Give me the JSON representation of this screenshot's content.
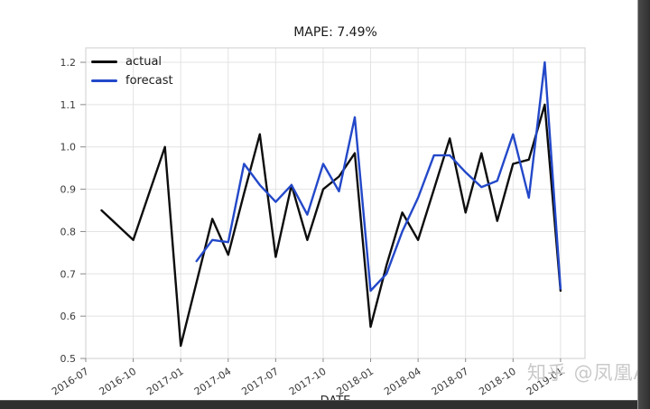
{
  "chart": {
    "title": "MAPE: 7.49%",
    "xlabel": "DATE"
  },
  "watermark": {
    "text": "知乎 @凤凰AI"
  },
  "chart_data": {
    "type": "line",
    "title": "MAPE: 7.49%",
    "xlabel": "DATE",
    "ylabel": "",
    "grid": true,
    "legend_position": "upper left",
    "ylim": [
      0.497,
      1.234
    ],
    "yticks": [
      0.5,
      0.6,
      0.7,
      0.8,
      0.9,
      1.0,
      1.1,
      1.2
    ],
    "xticks": [
      "2016-07",
      "2016-10",
      "2017-01",
      "2017-04",
      "2017-07",
      "2017-10",
      "2018-01",
      "2018-04",
      "2018-07",
      "2018-10",
      "2019-01"
    ],
    "x": [
      "2016-07",
      "2016-08",
      "2016-09",
      "2016-10",
      "2016-11",
      "2016-12",
      "2017-01",
      "2017-02",
      "2017-03",
      "2017-04",
      "2017-05",
      "2017-06",
      "2017-07",
      "2017-08",
      "2017-09",
      "2017-10",
      "2017-11",
      "2017-12",
      "2018-01",
      "2018-02",
      "2018-03",
      "2018-04",
      "2018-05",
      "2018-06",
      "2018-07",
      "2018-08",
      "2018-09",
      "2018-10",
      "2018-11",
      "2018-12",
      "2019-01"
    ],
    "series": [
      {
        "name": "actual",
        "color": "#0d0d0d",
        "values": [
          null,
          0.85,
          0.815,
          0.78,
          0.89,
          1.0,
          0.53,
          0.68,
          0.83,
          0.745,
          0.89,
          1.03,
          0.74,
          0.91,
          0.78,
          0.9,
          0.93,
          0.985,
          0.575,
          0.72,
          0.845,
          0.78,
          0.9,
          1.02,
          0.845,
          0.985,
          0.825,
          0.96,
          0.97,
          1.1,
          0.66
        ]
      },
      {
        "name": "forecast",
        "color": "#2348c9",
        "values": [
          null,
          null,
          null,
          null,
          null,
          null,
          null,
          0.73,
          0.78,
          0.775,
          0.96,
          0.91,
          0.87,
          0.91,
          0.84,
          0.96,
          0.895,
          1.07,
          0.66,
          0.7,
          0.8,
          0.88,
          0.98,
          0.98,
          0.94,
          0.905,
          0.92,
          1.03,
          0.88,
          1.2,
          0.665
        ]
      }
    ]
  }
}
